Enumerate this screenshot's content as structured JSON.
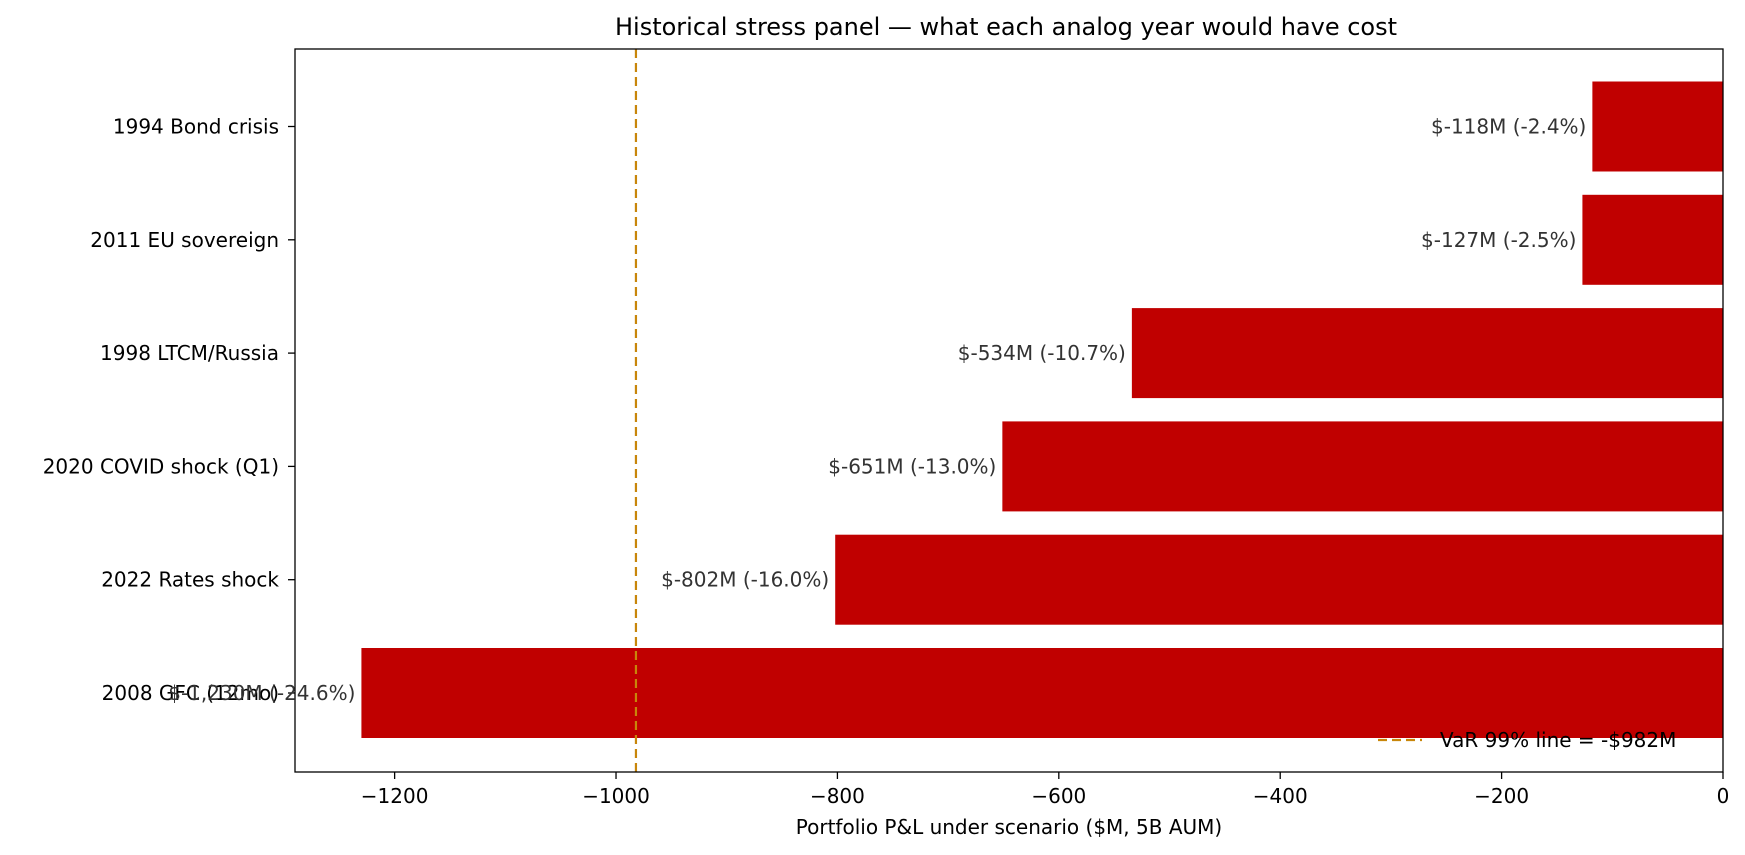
{
  "chart_data": {
    "type": "bar",
    "orientation": "horizontal",
    "title": "Historical stress panel — what each analog year would have cost",
    "xlabel": "Portfolio P&L under scenario  ($M, 5B AUM)",
    "ylabel": "",
    "xlim": [
      -1290,
      0
    ],
    "xticks": [
      -1200,
      -1000,
      -800,
      -600,
      -400,
      -200,
      0
    ],
    "xtick_labels": [
      "−1200",
      "−1000",
      "−800",
      "−600",
      "−400",
      "−200",
      "0"
    ],
    "categories": [
      "1994 Bond crisis",
      "2011 EU sovereign",
      "1998 LTCM/Russia",
      "2020 COVID shock (Q1)",
      "2022 Rates shock",
      "2008 GFC (12mo)"
    ],
    "values": [
      -118,
      -127,
      -534,
      -651,
      -802,
      -1230
    ],
    "data_labels": [
      "$-118M (-2.4%)",
      "$-127M (-2.5%)",
      "$-534M (-10.7%)",
      "$-651M (-13.0%)",
      "$-802M (-16.0%)",
      "$-1,230M (-24.6%)"
    ],
    "bar_color": "#c00000",
    "reference_line": {
      "value": -982,
      "style": "dashed",
      "color": "#c8860a",
      "label": "VaR 99% line = -$982M"
    },
    "legend": {
      "placement": "lower-right",
      "entries": [
        "VaR 99% line = -$982M"
      ]
    },
    "grid": false
  }
}
